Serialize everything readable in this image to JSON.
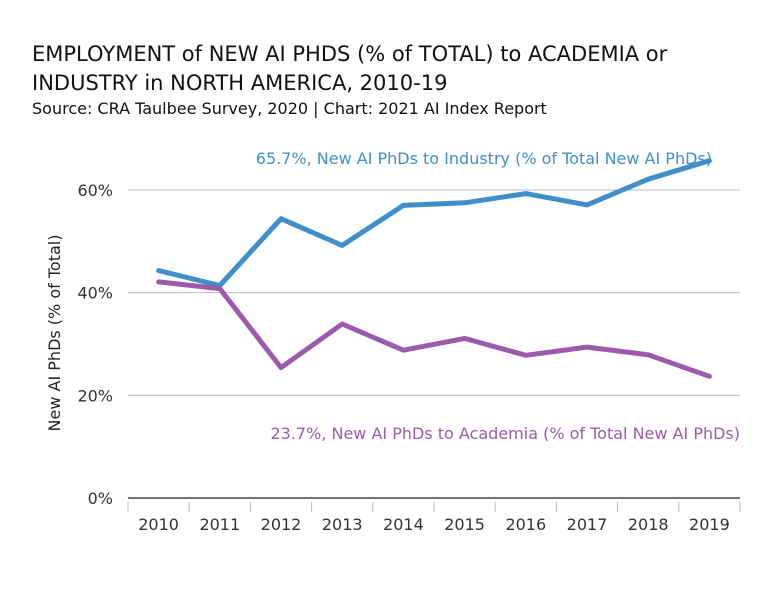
{
  "title": "EMPLOYMENT of NEW AI PHDS (% of TOTAL) to ACADEMIA or INDUSTRY in NORTH AMERICA, 2010-19",
  "subtitle": "Source: CRA Taulbee Survey, 2020 | Chart: 2021 AI Index Report",
  "colors": {
    "industry": "#3e8fcb",
    "academia": "#9b5aac",
    "grid": "#bbbbbb",
    "axis": "#444444"
  },
  "chart_data": {
    "type": "line",
    "x": [
      "2010",
      "2011",
      "2012",
      "2013",
      "2014",
      "2015",
      "2016",
      "2017",
      "2018",
      "2019"
    ],
    "ylabel": "New AI PhDs (% of Total)",
    "ylim": [
      0,
      70
    ],
    "yticks": [
      0,
      20,
      40,
      60
    ],
    "ytick_labels": [
      "0%",
      "20%",
      "40%",
      "60%"
    ],
    "grid": true,
    "series": [
      {
        "name": "New AI PhDs to Industry (% of Total New AI PhDs)",
        "key": "industry",
        "values": [
          44.3,
          41.4,
          54.4,
          49.2,
          57.0,
          57.5,
          59.3,
          57.1,
          62.1,
          65.7
        ],
        "label": "65.7%, New AI PhDs to Industry (% of Total New AI PhDs)"
      },
      {
        "name": "New AI PhDs to Academia (% of Total New AI PhDs)",
        "key": "academia",
        "values": [
          42.1,
          40.8,
          25.4,
          33.9,
          28.8,
          31.1,
          27.8,
          29.4,
          27.9,
          23.7
        ],
        "label": "23.7%, New AI PhDs to Academia (% of Total New AI PhDs)"
      }
    ]
  }
}
